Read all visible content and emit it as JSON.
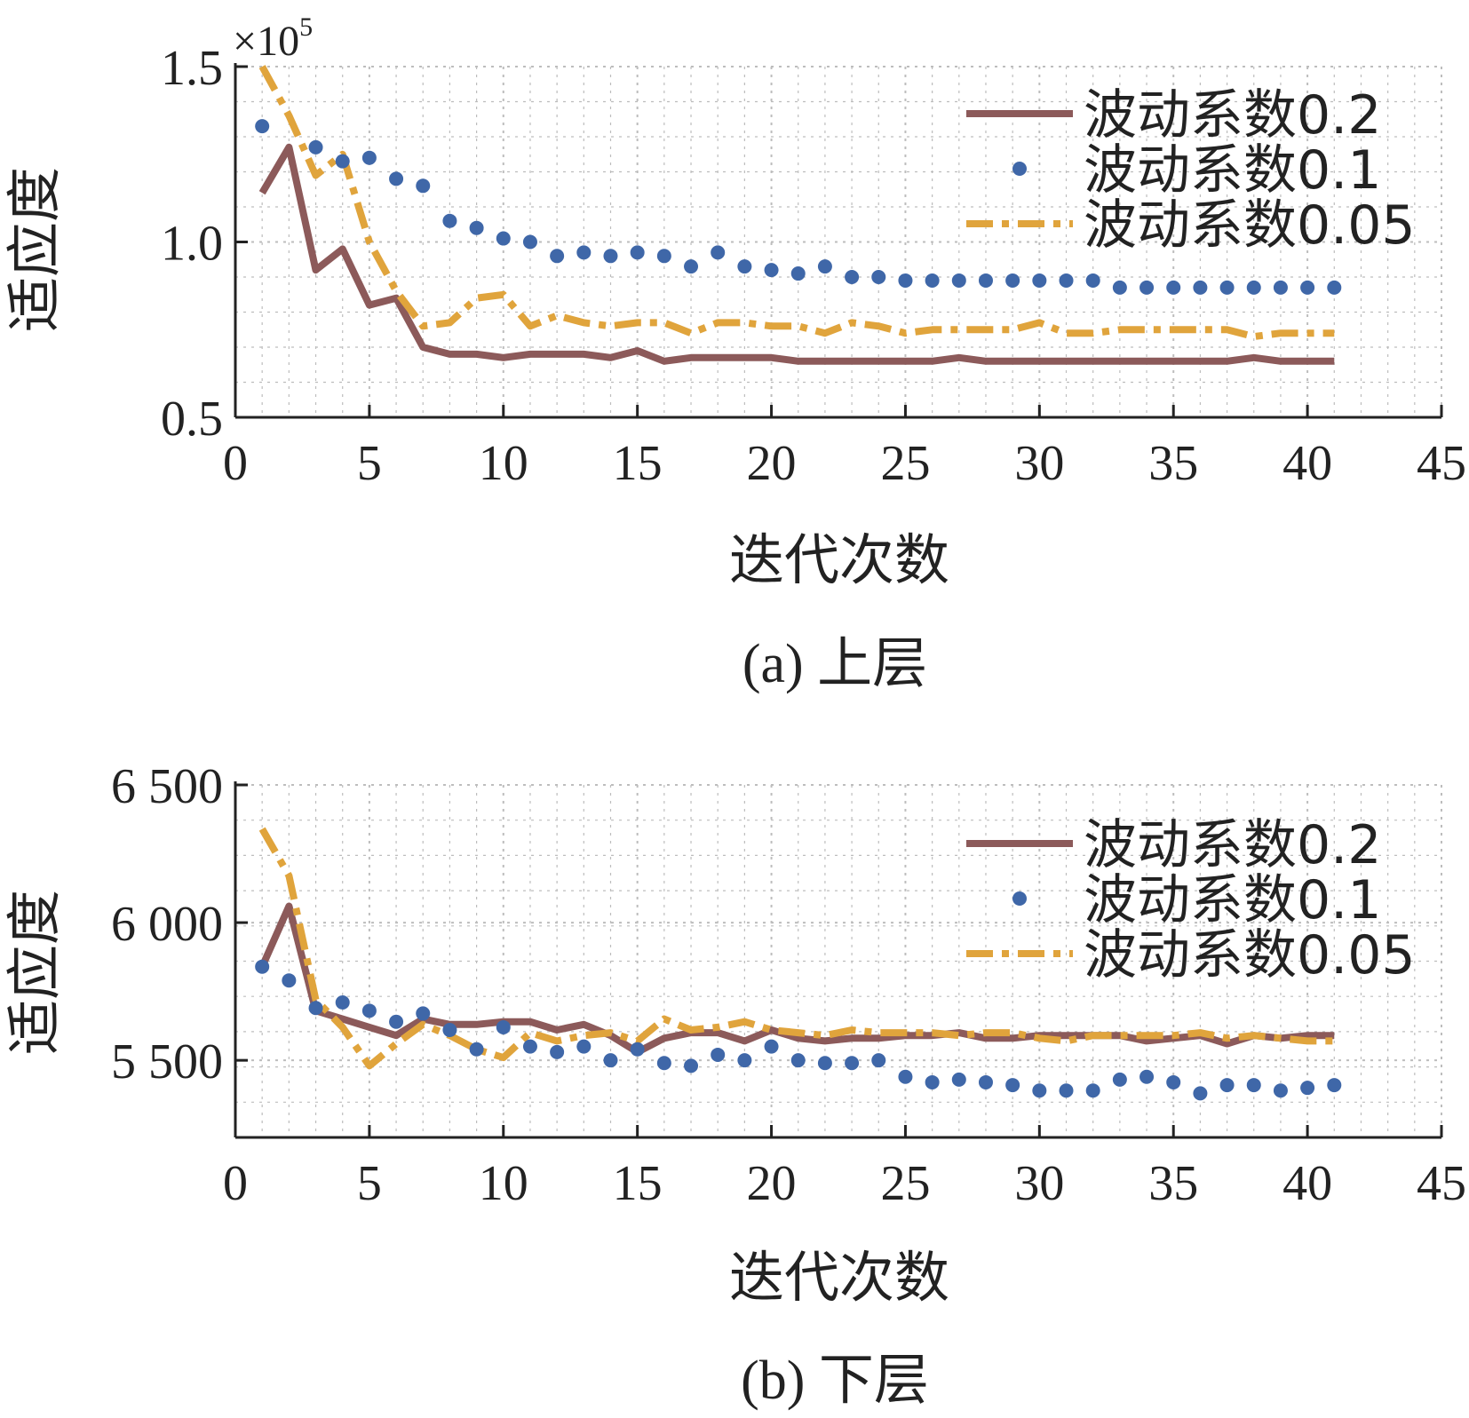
{
  "colors": {
    "series_0_2": "#8C5A5A",
    "series_0_1": "#3F67A8",
    "series_0_05": "#E0A43C",
    "grid": "#BDBDBD",
    "axis": "#222222"
  },
  "chart_data": [
    {
      "type": "line",
      "caption": "(a) 上层",
      "xlabel": "迭代次数",
      "ylabel": "适应度",
      "multiplier_base": "×10",
      "multiplier_exp": "5",
      "xlim": [
        0,
        45
      ],
      "ylim": [
        0.5,
        1.5
      ],
      "xticks": [
        0,
        5,
        10,
        15,
        20,
        25,
        30,
        35,
        40,
        45
      ],
      "xtick_labels": [
        "0",
        "5",
        "10",
        "15",
        "20",
        "25",
        "30",
        "35",
        "40",
        "45"
      ],
      "yticks": [
        0.5,
        1.0,
        1.5
      ],
      "ytick_labels": [
        "0.5",
        "1.0",
        "1.5"
      ],
      "grid": true,
      "legend_position": "top-right",
      "x": [
        1,
        2,
        3,
        4,
        5,
        6,
        7,
        8,
        9,
        10,
        11,
        12,
        13,
        14,
        15,
        16,
        17,
        18,
        19,
        20,
        21,
        22,
        23,
        24,
        25,
        26,
        27,
        28,
        29,
        30,
        31,
        32,
        33,
        34,
        35,
        36,
        37,
        38,
        39,
        40,
        41
      ],
      "series": [
        {
          "name": "波动系数0.2",
          "style": "solid",
          "color_key": "series_0_2",
          "values": [
            1.14,
            1.27,
            0.92,
            0.98,
            0.82,
            0.84,
            0.7,
            0.68,
            0.68,
            0.67,
            0.68,
            0.68,
            0.68,
            0.67,
            0.69,
            0.66,
            0.67,
            0.67,
            0.67,
            0.67,
            0.66,
            0.66,
            0.66,
            0.66,
            0.66,
            0.66,
            0.67,
            0.66,
            0.66,
            0.66,
            0.66,
            0.66,
            0.66,
            0.66,
            0.66,
            0.66,
            0.66,
            0.67,
            0.66,
            0.66,
            0.66
          ]
        },
        {
          "name": "波动系数0.1",
          "style": "dots",
          "color_key": "series_0_1",
          "values": [
            1.33,
            null,
            1.27,
            1.23,
            1.24,
            1.18,
            1.16,
            1.06,
            1.04,
            1.01,
            1.0,
            0.96,
            0.97,
            0.96,
            0.97,
            0.96,
            0.93,
            0.97,
            0.93,
            0.92,
            0.91,
            0.93,
            0.9,
            0.9,
            0.89,
            0.89,
            0.89,
            0.89,
            0.89,
            0.89,
            0.89,
            0.89,
            0.87,
            0.87,
            0.87,
            0.87,
            0.87,
            0.87,
            0.87,
            0.87,
            0.87
          ]
        },
        {
          "name": "波动系数0.05",
          "style": "dashdot",
          "color_key": "series_0_05",
          "values": [
            1.5,
            1.36,
            1.19,
            1.25,
            1.0,
            0.86,
            0.76,
            0.77,
            0.84,
            0.85,
            0.76,
            0.79,
            0.77,
            0.76,
            0.77,
            0.77,
            0.74,
            0.77,
            0.77,
            0.76,
            0.76,
            0.74,
            0.77,
            0.76,
            0.74,
            0.75,
            0.75,
            0.75,
            0.75,
            0.77,
            0.74,
            0.74,
            0.75,
            0.75,
            0.75,
            0.75,
            0.75,
            0.73,
            0.74,
            0.74,
            0.74
          ]
        }
      ]
    },
    {
      "type": "line",
      "caption": "(b) 下层",
      "xlabel": "迭代次数",
      "ylabel": "适应度",
      "xlim": [
        0,
        45
      ],
      "ylim": [
        5220,
        6500
      ],
      "xticks": [
        0,
        5,
        10,
        15,
        20,
        25,
        30,
        35,
        40,
        45
      ],
      "xtick_labels": [
        "0",
        "5",
        "10",
        "15",
        "20",
        "25",
        "30",
        "35",
        "40",
        "45"
      ],
      "yticks": [
        5500,
        6000,
        6500
      ],
      "ytick_labels": [
        "5 500",
        "6 000",
        "6 500"
      ],
      "grid": true,
      "legend_position": "top-right",
      "x": [
        1,
        2,
        3,
        4,
        5,
        6,
        7,
        8,
        9,
        10,
        11,
        12,
        13,
        14,
        15,
        16,
        17,
        18,
        19,
        20,
        21,
        22,
        23,
        24,
        25,
        26,
        27,
        28,
        29,
        30,
        31,
        32,
        33,
        34,
        35,
        36,
        37,
        38,
        39,
        40,
        41
      ],
      "series": [
        {
          "name": "波动系数0.2",
          "style": "solid",
          "color_key": "series_0_2",
          "values": [
            5840,
            6060,
            5680,
            5650,
            5620,
            5590,
            5650,
            5630,
            5630,
            5640,
            5640,
            5610,
            5630,
            5590,
            5530,
            5580,
            5600,
            5600,
            5570,
            5610,
            5580,
            5570,
            5580,
            5580,
            5590,
            5590,
            5600,
            5580,
            5580,
            5590,
            5590,
            5590,
            5590,
            5570,
            5580,
            5590,
            5560,
            5590,
            5580,
            5590,
            5590
          ]
        },
        {
          "name": "波动系数0.1",
          "style": "dots",
          "color_key": "series_0_1",
          "values": [
            5840,
            5790,
            5690,
            5710,
            5680,
            5640,
            5670,
            5610,
            5540,
            5620,
            5550,
            5530,
            5550,
            5500,
            5540,
            5490,
            5480,
            5520,
            5500,
            5550,
            5500,
            5490,
            5490,
            5500,
            5440,
            5420,
            5430,
            5420,
            5410,
            5390,
            5390,
            5390,
            5430,
            5440,
            5420,
            5380,
            5410,
            5410,
            5390,
            5400,
            5410
          ]
        },
        {
          "name": "波动系数0.05",
          "style": "dashdot",
          "color_key": "series_0_05",
          "values": [
            6340,
            6170,
            5720,
            5620,
            5480,
            5560,
            5630,
            5590,
            5540,
            5510,
            5600,
            5570,
            5590,
            5600,
            5570,
            5650,
            5610,
            5620,
            5640,
            5610,
            5600,
            5590,
            5610,
            5600,
            5600,
            5600,
            5590,
            5600,
            5600,
            5580,
            5570,
            5590,
            5590,
            5590,
            5590,
            5600,
            5580,
            5590,
            5580,
            5570,
            5570
          ]
        }
      ]
    }
  ]
}
